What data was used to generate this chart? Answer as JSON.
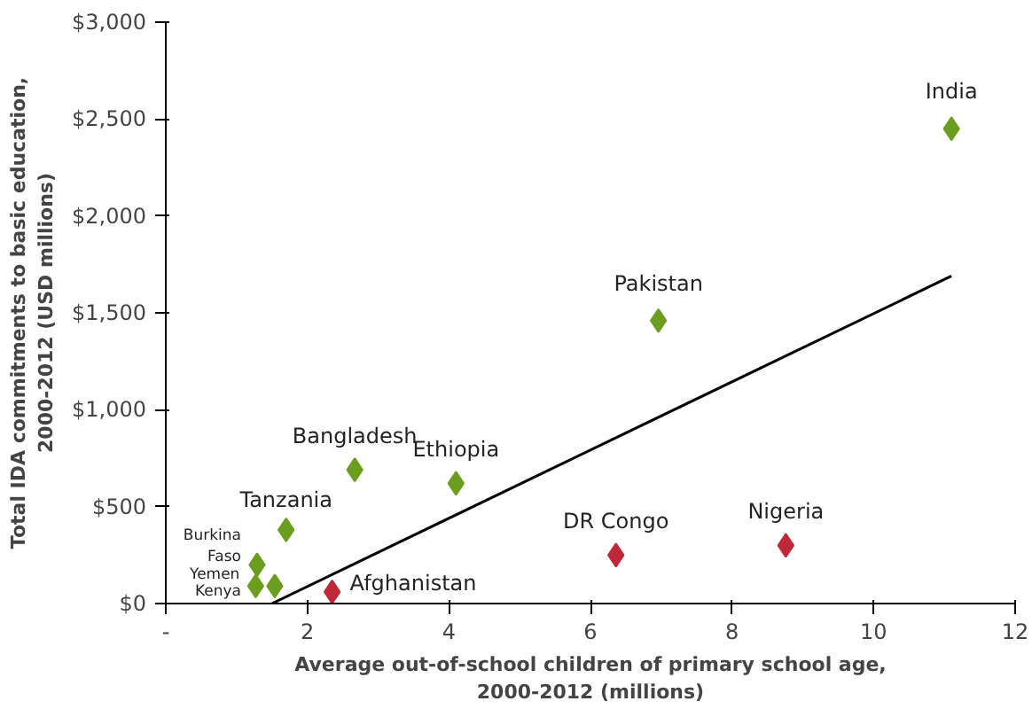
{
  "chart_data": {
    "type": "scatter",
    "xlabel": "Average out-of-school children of primary school age, 2000-2012 (millions)",
    "ylabel": "Total IDA commitments to basic education, 2000-2012 (USD millions)",
    "series": [
      {
        "type": "scatter",
        "color": "#6b9e1f",
        "x": [
          11.1,
          6.96,
          4.1,
          2.67,
          1.7,
          1.29,
          1.27,
          1.54
        ],
        "values": [
          2450,
          1460,
          620,
          690,
          380,
          200,
          90,
          90
        ]
      },
      {
        "type": "scatter",
        "color": "#c0283a",
        "x": [
          8.76,
          6.36,
          2.35
        ],
        "values": [
          300,
          250,
          60
        ]
      },
      {
        "type": "line",
        "marker": "none",
        "color": "#000000",
        "x": [
          1.5,
          11.1
        ],
        "values": [
          0,
          1690
        ]
      }
    ],
    "annotations": [
      {
        "text": "India",
        "x": 11.1,
        "y": 2450
      },
      {
        "text": "Pakistan",
        "x": 6.96,
        "y": 1460
      },
      {
        "text": "Ethiopia",
        "x": 4.1,
        "y": 620
      },
      {
        "text": "Bangladesh",
        "x": 2.67,
        "y": 690
      },
      {
        "text": "Tanzania",
        "x": 1.7,
        "y": 380
      },
      {
        "text": "Burkina Faso",
        "x": 1.29,
        "y": 200
      },
      {
        "text": "Yemen",
        "x": 1.27,
        "y": 90
      },
      {
        "text": "Kenya",
        "x": 1.54,
        "y": 90
      },
      {
        "text": "Nigeria",
        "x": 8.76,
        "y": 300
      },
      {
        "text": "DR Congo",
        "x": 6.36,
        "y": 250
      },
      {
        "text": "Afghanistan",
        "x": 2.35,
        "y": 60
      }
    ],
    "marker": "diamond",
    "grid": false,
    "xlim": [
      0,
      12
    ],
    "xticks": [
      {
        "value": 0,
        "label": "-"
      },
      2,
      4,
      6,
      8,
      10,
      12
    ],
    "ylim": [
      0,
      3000
    ],
    "yticks": [
      {
        "value": 0,
        "label": "$0"
      },
      {
        "value": 500,
        "label": "$500"
      },
      {
        "value": 1000,
        "label": "$1,000"
      },
      {
        "value": 1500,
        "label": "$1,500"
      },
      {
        "value": 2000,
        "label": "$2,000"
      },
      {
        "value": 2500,
        "label": "$2,500"
      },
      {
        "value": 3000,
        "label": "$3,000"
      }
    ]
  }
}
